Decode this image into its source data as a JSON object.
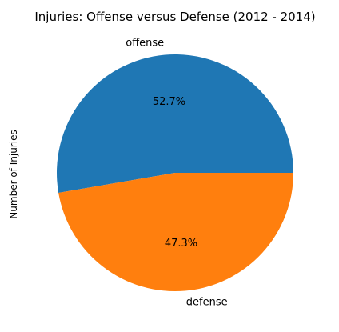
{
  "chart_data": {
    "type": "pie",
    "title": "Injuries: Offense versus Defense (2012 - 2014)",
    "ylabel": "Number of Injuries",
    "slices": [
      {
        "label": "offense",
        "percent": 52.7,
        "percent_label": "52.7%",
        "color": "#1f77b4"
      },
      {
        "label": "defense",
        "percent": 47.3,
        "percent_label": "47.3%",
        "color": "#ff7f0e"
      }
    ],
    "start_angle_deg": 0,
    "direction": "counterclockwise",
    "legend": "none"
  }
}
